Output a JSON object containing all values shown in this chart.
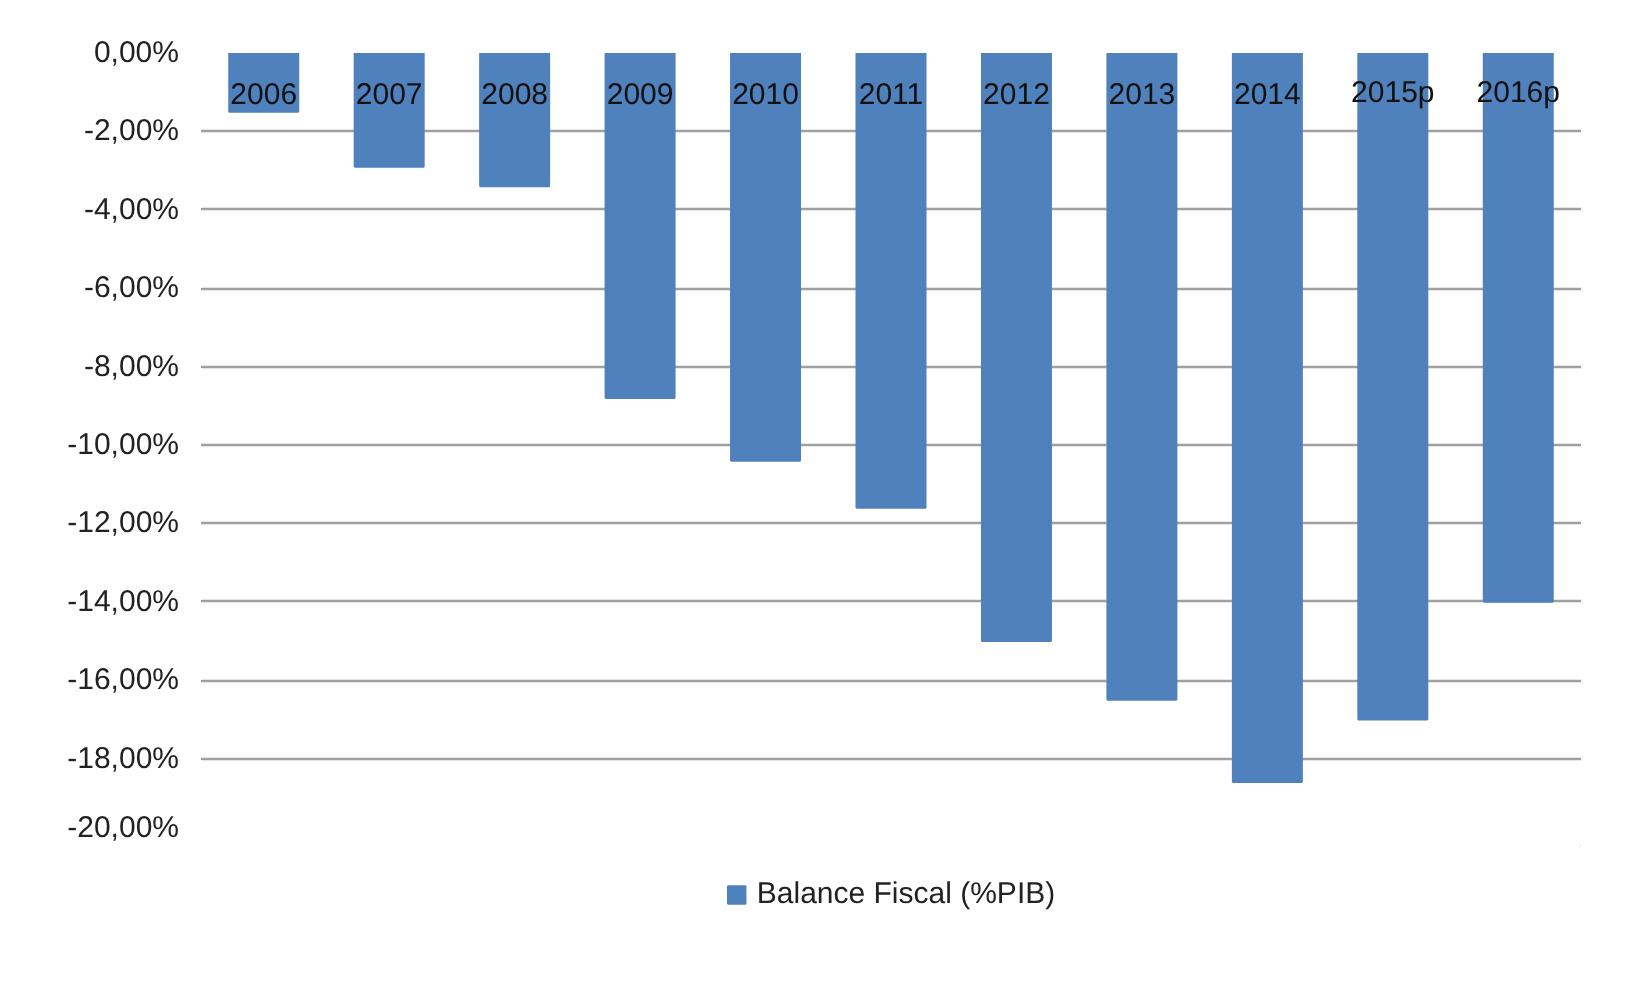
{
  "chart_data": {
    "type": "bar",
    "categories": [
      "2006",
      "2007",
      "2008",
      "2009",
      "2010",
      "2011",
      "2012",
      "2013",
      "2014",
      "2015p",
      "2016p"
    ],
    "series": [
      {
        "name": "Balance Fiscal (%PIB)",
        "color": "#4f81bd",
        "values": [
          -1.5,
          -2.9,
          -3.4,
          -8.8,
          -10.4,
          -11.6,
          -15.0,
          -16.5,
          -18.6,
          -17.0,
          -14.0
        ]
      }
    ],
    "ylim": [
      -20,
      0
    ],
    "yticks": [
      {
        "value": 0,
        "label": "0,00%"
      },
      {
        "value": -2,
        "label": "-2,00%"
      },
      {
        "value": -4,
        "label": "-4,00%"
      },
      {
        "value": -6,
        "label": "-6,00%"
      },
      {
        "value": -8,
        "label": "-8,00%"
      },
      {
        "value": -10,
        "label": "-10,00%"
      },
      {
        "value": -12,
        "label": "-12,00%"
      },
      {
        "value": -14,
        "label": "-14,00%"
      },
      {
        "value": -16,
        "label": "-16,00%"
      },
      {
        "value": -18,
        "label": "-18,00%"
      },
      {
        "value": -20,
        "label": "-20,00%"
      }
    ],
    "grid": "y",
    "legend": "bottom"
  }
}
